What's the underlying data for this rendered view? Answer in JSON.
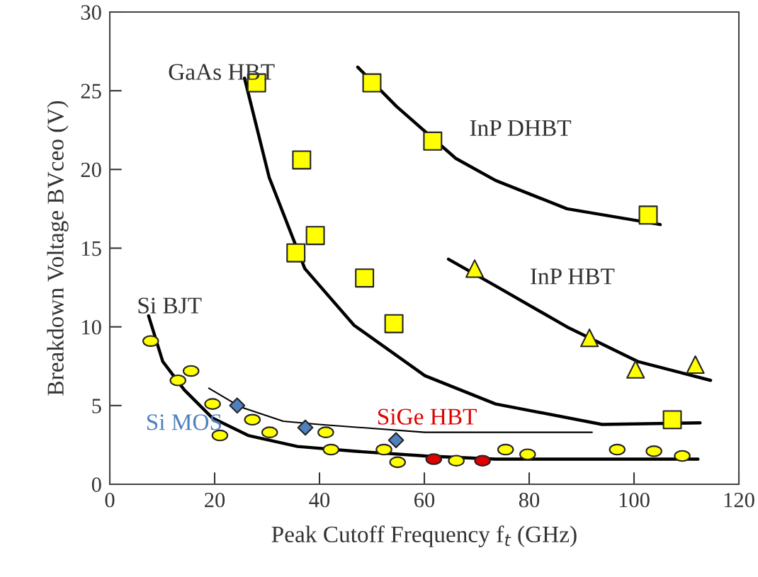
{
  "chart_data": {
    "type": "scatter",
    "xlabel": "Peak Cutoff Frequency f$_{t}$ (GHz)",
    "ylabel": "Breakdown Voltage BVceo (V)",
    "xlim": [
      0,
      120
    ],
    "ylim": [
      0,
      30
    ],
    "xticks": [
      0,
      20,
      40,
      60,
      80,
      100,
      120
    ],
    "yticks": [
      0,
      5,
      10,
      15,
      20,
      25,
      30
    ],
    "grid": false,
    "legend": false,
    "series": [
      {
        "name": "GaAs HBT",
        "marker": "square",
        "color": "#ffff00",
        "x": [
          28.0,
          36.6,
          35.5,
          39.2,
          48.6,
          54.2,
          107.3
        ],
        "values": [
          25.5,
          20.6,
          14.7,
          15.8,
          13.1,
          10.2,
          4.1
        ]
      },
      {
        "name": "InP DHBT",
        "marker": "square",
        "color": "#ffff00",
        "x": [
          50.0,
          61.6,
          102.7
        ],
        "values": [
          25.5,
          21.8,
          17.1
        ]
      },
      {
        "name": "InP HBT",
        "marker": "triangle",
        "color": "#ffff00",
        "x": [
          69.6,
          91.5,
          100.3,
          111.7
        ],
        "values": [
          13.7,
          9.3,
          7.3,
          7.6
        ]
      },
      {
        "name": "Si BJT",
        "marker": "circle",
        "color": "#ffff00",
        "x": [
          7.8,
          13.0,
          15.5,
          19.6,
          21.0,
          27.2,
          30.5,
          41.2,
          42.2,
          52.3,
          54.9,
          66.1,
          75.5,
          79.7,
          96.8,
          103.8,
          109.2
        ],
        "values": [
          9.1,
          6.6,
          7.2,
          5.1,
          3.1,
          4.1,
          3.3,
          3.3,
          2.2,
          2.2,
          1.4,
          1.5,
          2.2,
          1.9,
          2.2,
          2.1,
          1.8
        ]
      },
      {
        "name": "SiGe HBT",
        "marker": "circle",
        "color": "#e00000",
        "x": [
          61.8,
          71.1
        ],
        "values": [
          1.6,
          1.5
        ]
      },
      {
        "name": "Si MOS",
        "marker": "diamond",
        "color": "#4f81bd",
        "x": [
          24.3,
          37.3,
          54.6
        ],
        "values": [
          5.0,
          3.6,
          2.8
        ]
      },
      {
        "type": "line",
        "color": "#000000",
        "x": [
          25.7,
          30.4,
          37.2,
          46.6,
          60.1,
          73.6,
          93.9,
          112.6
        ],
        "values": [
          25.8,
          19.5,
          13.7,
          10.1,
          6.9,
          5.1,
          3.8,
          3.9
        ]
      },
      {
        "type": "line",
        "color": "#000000",
        "x": [
          47.3,
          54.7,
          66.0,
          73.6,
          87.2,
          105.0
        ],
        "values": [
          26.5,
          24.0,
          20.7,
          19.3,
          17.5,
          16.5
        ]
      },
      {
        "type": "line",
        "color": "#000000",
        "x": [
          64.6,
          73.6,
          87.2,
          100.7,
          108.8,
          114.6
        ],
        "values": [
          14.3,
          12.6,
          10.0,
          7.8,
          7.1,
          6.6
        ]
      },
      {
        "type": "line",
        "color": "#000000",
        "x": [
          7.4,
          10.1,
          14.2,
          19.6,
          26.4,
          35.8,
          46.6,
          60.1,
          73.6,
          112.2
        ],
        "values": [
          10.7,
          7.8,
          6.0,
          4.2,
          3.1,
          2.4,
          2.1,
          1.8,
          1.6,
          1.6
        ]
      },
      {
        "type": "line",
        "color": "#000000",
        "x": [
          18.9,
          25.0,
          33.1,
          39.9,
          60.1,
          92.0
        ],
        "values": [
          6.1,
          4.9,
          4.0,
          3.8,
          3.3,
          3.3
        ]
      }
    ]
  }
}
